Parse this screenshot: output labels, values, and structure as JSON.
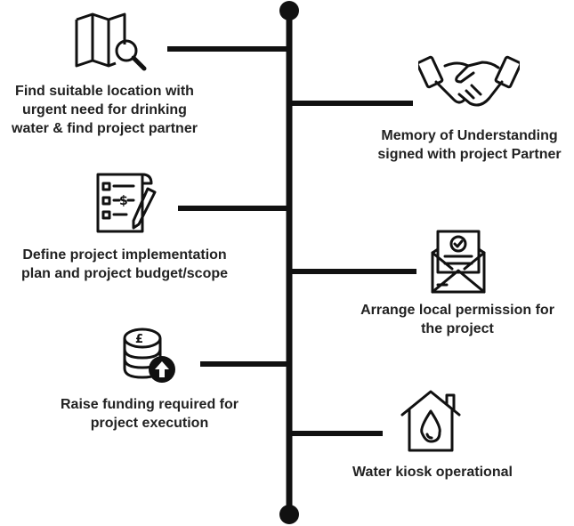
{
  "timeline": {
    "steps": [
      {
        "side": "left",
        "icon": "map-search-icon",
        "text": "Find suitable location with\nurgent need for drinking\nwater & find project partner"
      },
      {
        "side": "right",
        "icon": "handshake-icon",
        "text": "Memory of Understanding\nsigned with project Partner"
      },
      {
        "side": "left",
        "icon": "budget-plan-icon",
        "text": "Define project implementation\nplan and project budget/scope"
      },
      {
        "side": "right",
        "icon": "approval-letter-icon",
        "text": "Arrange local permission for\nthe project"
      },
      {
        "side": "left",
        "icon": "coins-upload-icon",
        "text": "Raise funding required for\nproject execution"
      },
      {
        "side": "right",
        "icon": "water-kiosk-icon",
        "text": "Water kiosk operational"
      }
    ]
  },
  "colors": {
    "line": "#111111",
    "text": "#222222",
    "background": "#ffffff"
  }
}
